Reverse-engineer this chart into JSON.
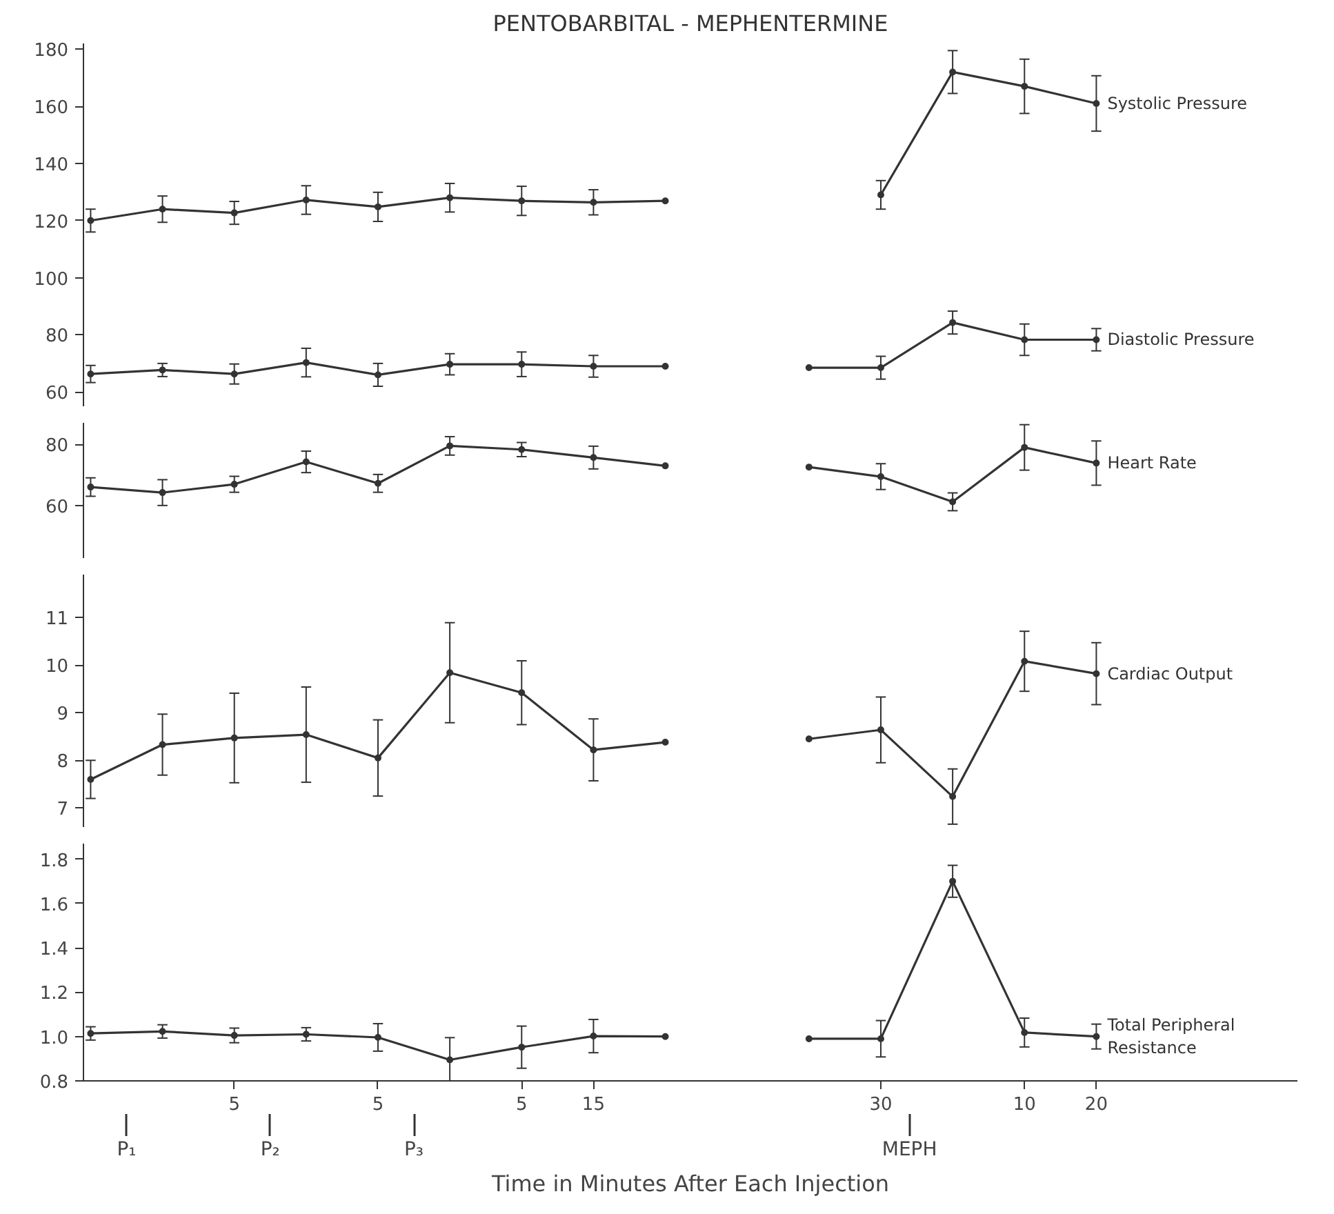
{
  "chart_data": [
    {
      "type": "line",
      "title": "PENTOBARBITAL - MEPHENTERMINE",
      "marker": "circle",
      "line_style": "solid",
      "grid": false,
      "tick_labels": "y",
      "categories": [
        null,
        null,
        "5",
        null,
        "5",
        null,
        "5",
        "15",
        null,
        null,
        null,
        "30",
        null,
        "10",
        "20"
      ],
      "ylim": [
        55,
        182
      ],
      "yticks": [
        60,
        80,
        100,
        120,
        140,
        160,
        180
      ],
      "series": [
        {
          "name": "Systolic Pressure",
          "color": "#333333",
          "values": [
            120,
            124,
            122.7,
            127.2,
            124.8,
            128,
            126.9,
            126.4,
            126.9,
            null,
            null,
            129,
            172,
            167,
            161
          ],
          "errors": [
            4,
            4.6,
            4,
            5,
            5.1,
            5,
            5.1,
            4.4,
            null,
            null,
            null,
            5,
            7.5,
            9.5,
            9.7
          ]
        },
        {
          "name": "Diastolic Pressure",
          "color": "#333333",
          "values": [
            66.3,
            67.7,
            66.3,
            70.3,
            66,
            69.7,
            69.7,
            69,
            69,
            null,
            68.5,
            68.5,
            84.3,
            78.3,
            78.3
          ],
          "errors": [
            3,
            2.3,
            3.5,
            5,
            4,
            3.7,
            4.3,
            3.8,
            null,
            null,
            null,
            4,
            4,
            5.5,
            3.9
          ]
        }
      ]
    },
    {
      "type": "line",
      "marker": "circle",
      "line_style": "solid",
      "grid": false,
      "tick_labels": "y",
      "categories": [
        null,
        null,
        "5",
        null,
        "5",
        null,
        "5",
        "15",
        null,
        null,
        null,
        "30",
        null,
        "10",
        "20"
      ],
      "ylim": [
        43,
        87
      ],
      "yticks": [
        60,
        80
      ],
      "series": [
        {
          "name": "Heart Rate",
          "color": "#333333",
          "values": [
            66.1,
            64.3,
            67,
            74.3,
            67.3,
            79.5,
            78.3,
            75.7,
            73,
            null,
            72.6,
            69.5,
            61.3,
            79,
            73.9
          ],
          "errors": [
            3,
            4.2,
            2.6,
            3.5,
            2.9,
            3,
            2.3,
            3.7,
            null,
            null,
            null,
            4.2,
            2.9,
            7.4,
            7.2
          ]
        }
      ]
    },
    {
      "type": "line",
      "marker": "circle",
      "line_style": "solid",
      "grid": false,
      "tick_labels": "y",
      "categories": [
        null,
        null,
        "5",
        null,
        "5",
        null,
        "5",
        "15",
        null,
        null,
        null,
        "30",
        null,
        "10",
        "20"
      ],
      "ylim": [
        6.6,
        11.9
      ],
      "yticks": [
        7,
        8,
        9,
        10,
        11
      ],
      "series": [
        {
          "name": "Cardiac Output",
          "color": "#333333",
          "values": [
            7.6,
            8.33,
            8.47,
            8.54,
            8.05,
            9.84,
            9.42,
            8.22,
            8.38,
            null,
            8.45,
            8.64,
            7.24,
            10.08,
            9.82
          ],
          "errors": [
            0.4,
            0.64,
            0.94,
            1.0,
            0.8,
            1.05,
            0.67,
            0.65,
            null,
            null,
            null,
            0.69,
            0.58,
            0.63,
            0.65
          ]
        }
      ]
    },
    {
      "type": "line",
      "marker": "circle",
      "line_style": "solid",
      "grid": false,
      "xlabel": "Time in Minutes After Each Injection",
      "categories": [
        null,
        null,
        "5",
        null,
        "5",
        null,
        "5",
        "15",
        null,
        null,
        null,
        "30",
        null,
        "10",
        "20"
      ],
      "ylim": [
        0.8,
        1.87
      ],
      "yticks": [
        {
          "value": 0.8,
          "label": "0.8"
        },
        {
          "value": 1.0,
          "label": "1.0"
        },
        1.2,
        1.4,
        1.6,
        1.8
      ],
      "annotations": [
        "P₁",
        "P₂",
        "P₃",
        "MEPH"
      ],
      "series": [
        {
          "name": "Total Peripheral Resistance",
          "color": "#333333",
          "values": [
            1.014,
            1.023,
            1.005,
            1.01,
            0.996,
            0.895,
            0.952,
            1.002,
            1.0,
            null,
            0.99,
            0.99,
            1.7,
            1.018,
            1.0
          ],
          "errors": [
            0.03,
            0.03,
            0.033,
            0.03,
            0.062,
            0.1,
            0.095,
            0.075,
            null,
            null,
            null,
            0.082,
            0.072,
            0.065,
            0.056
          ]
        }
      ]
    }
  ]
}
